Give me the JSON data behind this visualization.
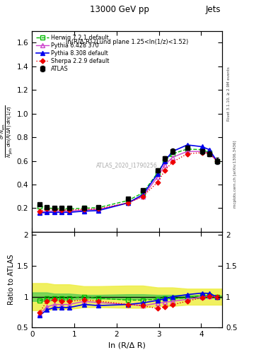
{
  "title": "13000 GeV pp",
  "title_right": "Jets",
  "plot_label": "ln(R/Δ R) (Lund plane 1.25<ln(1/z)<1.52)",
  "watermark": "ATLAS_2020_I1790256",
  "right_label_top": "Rivet 3.1.10, ≥ 2.9M events",
  "right_label_bottom": "mcplots.cern.ch [arXiv:1306.3436]",
  "ylabel_ratio": "Ratio to ATLAS",
  "xlabel": "ln (R/Δ R)",
  "xlim": [
    0,
    4.5
  ],
  "ylim_main": [
    0,
    1.7
  ],
  "ylim_ratio": [
    0.5,
    2.05
  ],
  "x_data": [
    0.18,
    0.35,
    0.53,
    0.7,
    0.88,
    1.23,
    1.57,
    2.27,
    2.62,
    2.97,
    3.14,
    3.32,
    3.67,
    4.02,
    4.19,
    4.37
  ],
  "atlas_y": [
    0.23,
    0.21,
    0.2,
    0.2,
    0.2,
    0.2,
    0.21,
    0.28,
    0.35,
    0.52,
    0.62,
    0.68,
    0.71,
    0.68,
    0.66,
    0.6
  ],
  "atlas_yerr": [
    0.01,
    0.01,
    0.005,
    0.005,
    0.005,
    0.005,
    0.005,
    0.01,
    0.015,
    0.02,
    0.02,
    0.025,
    0.02,
    0.02,
    0.02,
    0.025
  ],
  "herwig_y": [
    0.215,
    0.205,
    0.195,
    0.195,
    0.195,
    0.2,
    0.205,
    0.265,
    0.33,
    0.5,
    0.6,
    0.66,
    0.7,
    0.695,
    0.67,
    0.6
  ],
  "pythia6_y": [
    0.165,
    0.175,
    0.175,
    0.175,
    0.175,
    0.185,
    0.19,
    0.245,
    0.3,
    0.465,
    0.565,
    0.63,
    0.68,
    0.68,
    0.665,
    0.6
  ],
  "pythia8_y": [
    0.16,
    0.165,
    0.165,
    0.165,
    0.165,
    0.175,
    0.18,
    0.245,
    0.315,
    0.49,
    0.6,
    0.68,
    0.735,
    0.72,
    0.695,
    0.6
  ],
  "sherpa_y": [
    0.17,
    0.195,
    0.19,
    0.185,
    0.185,
    0.19,
    0.195,
    0.245,
    0.3,
    0.42,
    0.52,
    0.59,
    0.66,
    0.67,
    0.665,
    0.6
  ],
  "herwig_ratio": [
    0.935,
    0.976,
    0.975,
    0.975,
    0.975,
    1.0,
    0.976,
    0.946,
    0.943,
    0.962,
    0.968,
    0.971,
    0.986,
    1.022,
    1.015,
    1.0
  ],
  "pythia6_ratio": [
    0.717,
    0.833,
    0.875,
    0.875,
    0.875,
    0.925,
    0.905,
    0.875,
    0.857,
    0.894,
    0.911,
    0.926,
    0.957,
    1.0,
    1.008,
    1.0
  ],
  "pythia8_ratio": [
    0.696,
    0.786,
    0.825,
    0.825,
    0.825,
    0.875,
    0.857,
    0.875,
    0.9,
    0.942,
    0.968,
    1.0,
    1.035,
    1.059,
    1.053,
    1.0
  ],
  "sherpa_ratio": [
    0.739,
    0.929,
    0.95,
    0.925,
    0.925,
    0.95,
    0.929,
    0.875,
    0.857,
    0.808,
    0.839,
    0.868,
    0.93,
    0.985,
    1.008,
    1.0
  ],
  "band_x": [
    0.0,
    0.18,
    0.35,
    0.53,
    0.7,
    0.88,
    1.23,
    1.57,
    2.27,
    2.62,
    2.97,
    3.14,
    3.32,
    3.67,
    4.02,
    4.19,
    4.37,
    4.5
  ],
  "band_green_lo": [
    0.93,
    0.93,
    0.93,
    0.95,
    0.95,
    0.95,
    0.97,
    0.97,
    0.96,
    0.96,
    0.97,
    0.97,
    0.97,
    0.975,
    0.975,
    0.98,
    0.98,
    0.98
  ],
  "band_green_hi": [
    1.07,
    1.07,
    1.07,
    1.05,
    1.05,
    1.05,
    1.03,
    1.03,
    1.04,
    1.04,
    1.03,
    1.03,
    1.03,
    1.025,
    1.025,
    1.02,
    1.02,
    1.02
  ],
  "band_yellow_lo": [
    0.78,
    0.78,
    0.78,
    0.8,
    0.8,
    0.8,
    0.83,
    0.83,
    0.82,
    0.82,
    0.85,
    0.85,
    0.85,
    0.87,
    0.87,
    0.87,
    0.87,
    0.87
  ],
  "band_yellow_hi": [
    1.22,
    1.22,
    1.22,
    1.2,
    1.2,
    1.2,
    1.17,
    1.17,
    1.18,
    1.18,
    1.15,
    1.15,
    1.15,
    1.13,
    1.13,
    1.13,
    1.13,
    1.13
  ],
  "atlas_color": "black",
  "herwig_color": "#00bb00",
  "pythia6_color": "#cc44cc",
  "pythia8_color": "#0000ee",
  "sherpa_color": "#ee0000",
  "band_green_color": "#55cc55",
  "band_yellow_color": "#eeee44",
  "yticks_main": [
    0.2,
    0.4,
    0.6,
    0.8,
    1.0,
    1.2,
    1.4,
    1.6
  ],
  "yticks_ratio": [
    0.5,
    1.0,
    1.5,
    2.0
  ],
  "ytick_ratio_labels": [
    "0.5",
    "1",
    "1.5",
    "2"
  ]
}
